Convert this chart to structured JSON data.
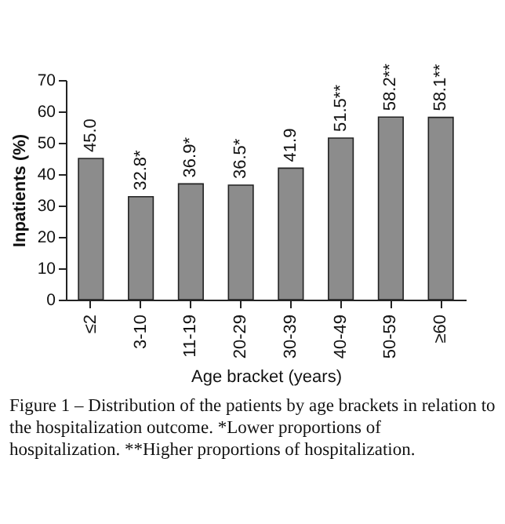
{
  "chart_data": {
    "type": "bar",
    "xlabel": "Age bracket (years)",
    "ylabel": "Inpatients (%)",
    "categories": [
      "≤2",
      "3-10",
      "11-19",
      "20-29",
      "30-39",
      "40-49",
      "50-59",
      "≥60"
    ],
    "values": [
      45.0,
      32.8,
      36.9,
      36.5,
      41.9,
      51.5,
      58.2,
      58.1
    ],
    "value_labels": [
      "45.0",
      "32.8*",
      "36.9*",
      "36.5*",
      "41.9",
      "51.5**",
      "58.2**",
      "58.1**"
    ],
    "color": "#8c8c8c",
    "ylim": [
      0,
      70
    ],
    "yticks": [
      0,
      10,
      20,
      30,
      40,
      50,
      60,
      70
    ],
    "grid": false,
    "annotations": [
      "Figure 1 – Distribution of the patients by age brackets in relation to the hospitalization outcome. *Lower proportions of hospitalization. **Higher proportions of hospitalization."
    ]
  }
}
